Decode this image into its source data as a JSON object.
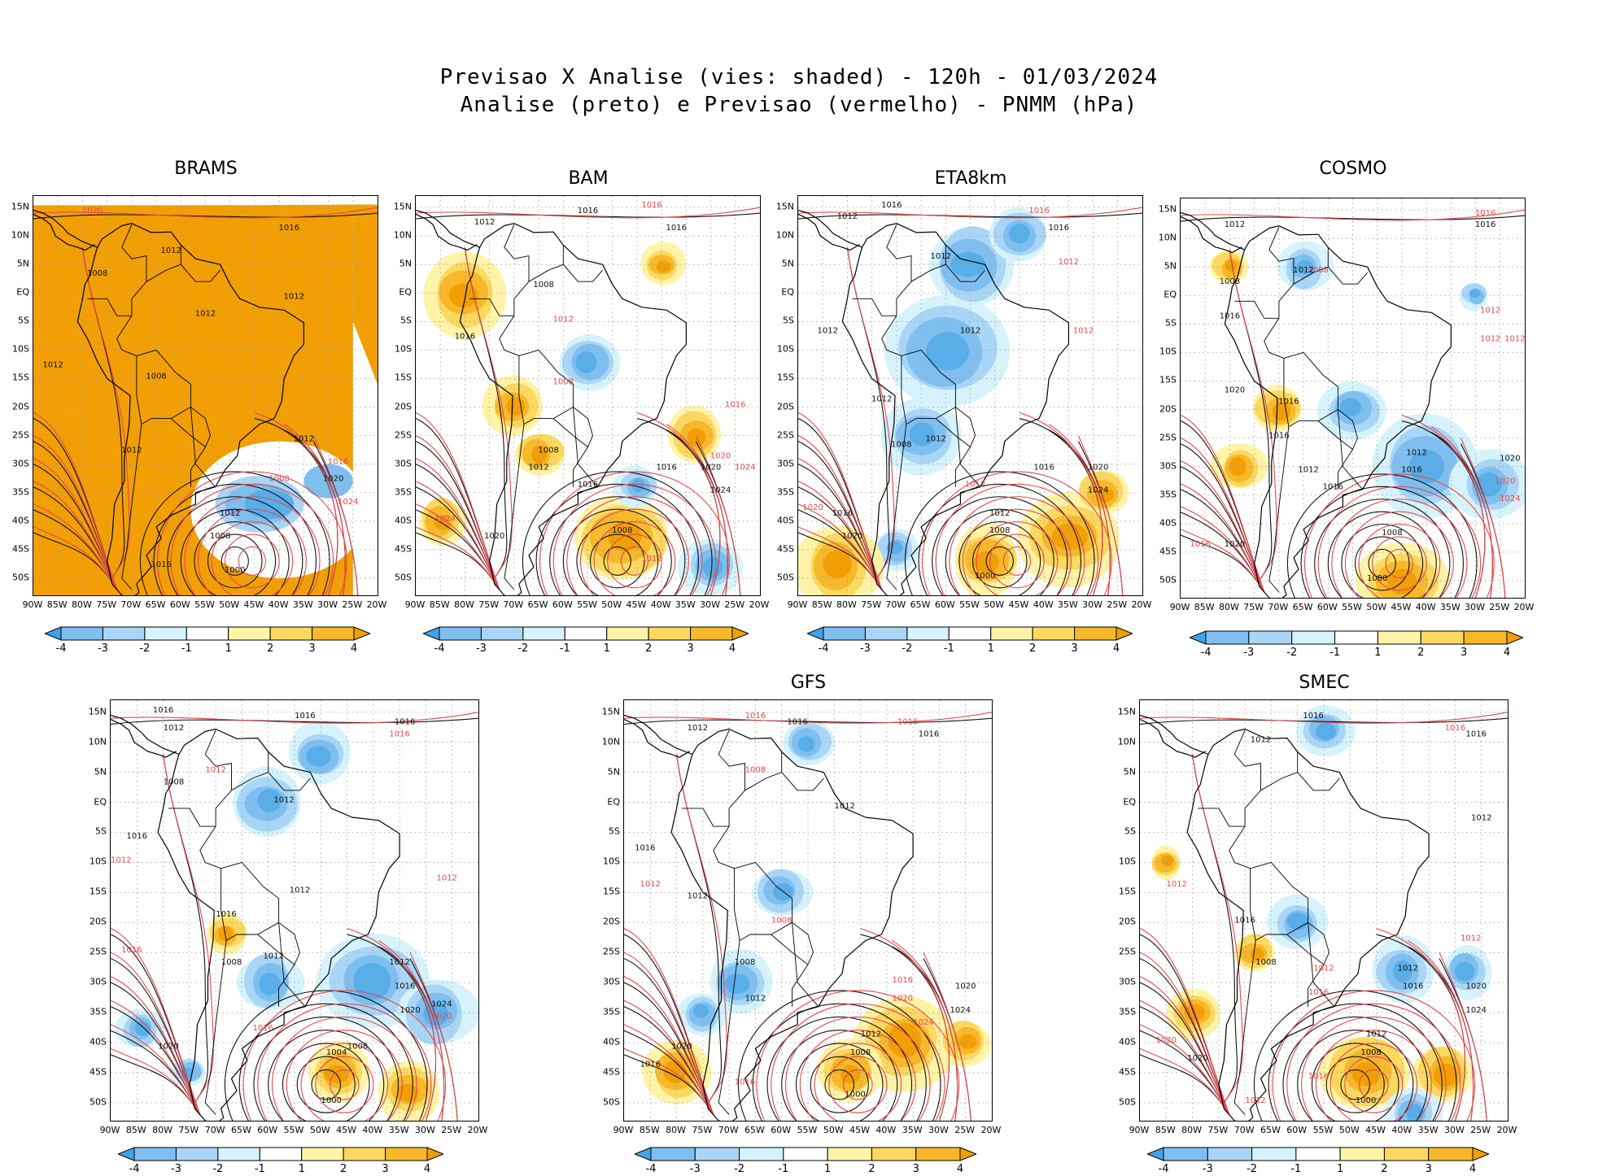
{
  "title": {
    "line1": "Previsao X Analise (vies: shaded) - 120h - 01/03/2024",
    "line2": "Analise (preto) e Previsao (vermelho) - PNMM (hPa)"
  },
  "axes": {
    "lat_labels": [
      "15N",
      "10N",
      "5N",
      "EQ",
      "5S",
      "10S",
      "15S",
      "20S",
      "25S",
      "30S",
      "35S",
      "40S",
      "45S",
      "50S"
    ],
    "lon_labels": [
      "90W",
      "85W",
      "80W",
      "75W",
      "70W",
      "65W",
      "60W",
      "55W",
      "50W",
      "45W",
      "40W",
      "35W",
      "30W",
      "25W",
      "20W"
    ]
  },
  "colorbar": {
    "labels": [
      "-4",
      "-3",
      "-2",
      "-1",
      "1",
      "2",
      "3",
      "4"
    ],
    "colors": [
      "#3fa3e8",
      "#7fbff0",
      "#a9d6f7",
      "#d6f3fb",
      "#ffffff",
      "#fff3a8",
      "#fcd860",
      "#f7b82a",
      "#f29f05"
    ]
  },
  "colors": {
    "analysis": "#111111",
    "forecast": "#e5484d",
    "warm": "#f6a21b",
    "cool": "#57aee9"
  },
  "panels": [
    {
      "name": "BRAMS",
      "labels": [
        {
          "text": "1020",
          "lon": -78,
          "lat": 14,
          "c": "r"
        },
        {
          "text": "1016",
          "lon": -38,
          "lat": 11,
          "c": "k"
        },
        {
          "text": "1012",
          "lon": -62,
          "lat": 7,
          "c": "k"
        },
        {
          "text": "1008",
          "lon": -77,
          "lat": 3,
          "c": "k"
        },
        {
          "text": "1012",
          "lon": -37,
          "lat": -1,
          "c": "k"
        },
        {
          "text": "1012",
          "lon": -55,
          "lat": -4,
          "c": "k"
        },
        {
          "text": "1012",
          "lon": -86,
          "lat": -13,
          "c": "k"
        },
        {
          "text": "1008",
          "lon": -65,
          "lat": -15,
          "c": "k"
        },
        {
          "text": "1012",
          "lon": -35,
          "lat": -26,
          "c": "k"
        },
        {
          "text": "1016",
          "lon": -28,
          "lat": -30,
          "c": "r"
        },
        {
          "text": "1008",
          "lon": -40,
          "lat": -33,
          "c": "r"
        },
        {
          "text": "1020",
          "lon": -29,
          "lat": -33,
          "c": "k"
        },
        {
          "text": "1012",
          "lon": -50,
          "lat": -39,
          "c": "k"
        },
        {
          "text": "1024",
          "lon": -26,
          "lat": -37,
          "c": "r"
        },
        {
          "text": "1008",
          "lon": -52,
          "lat": -43,
          "c": "k"
        },
        {
          "text": "1016",
          "lon": -64,
          "lat": -48,
          "c": "k"
        },
        {
          "text": "1000",
          "lon": -49,
          "lat": -49,
          "c": "k"
        },
        {
          "text": "1012",
          "lon": -70,
          "lat": -28,
          "c": "k"
        }
      ]
    },
    {
      "name": "BAM",
      "labels": [
        {
          "text": "1016",
          "lon": -42,
          "lat": 15,
          "c": "r"
        },
        {
          "text": "1016",
          "lon": -55,
          "lat": 14,
          "c": "k"
        },
        {
          "text": "1012",
          "lon": -76,
          "lat": 12,
          "c": "k"
        },
        {
          "text": "1016",
          "lon": -37,
          "lat": 11,
          "c": "k"
        },
        {
          "text": "1008",
          "lon": -64,
          "lat": 1,
          "c": "k"
        },
        {
          "text": "1012",
          "lon": -60,
          "lat": -5,
          "c": "r"
        },
        {
          "text": "1016",
          "lon": -80,
          "lat": -8,
          "c": "k"
        },
        {
          "text": "1008",
          "lon": -60,
          "lat": -16,
          "c": "r"
        },
        {
          "text": "1016",
          "lon": -25,
          "lat": -20,
          "c": "r"
        },
        {
          "text": "1008",
          "lon": -63,
          "lat": -28,
          "c": "k"
        },
        {
          "text": "1020",
          "lon": -28,
          "lat": -29,
          "c": "r"
        },
        {
          "text": "1016",
          "lon": -39,
          "lat": -31,
          "c": "k"
        },
        {
          "text": "1020",
          "lon": -30,
          "lat": -31,
          "c": "k"
        },
        {
          "text": "1024",
          "lon": -23,
          "lat": -31,
          "c": "r"
        },
        {
          "text": "1024",
          "lon": -28,
          "lat": -35,
          "c": "k"
        },
        {
          "text": "1016",
          "lon": -55,
          "lat": -34,
          "c": "k"
        },
        {
          "text": "1024",
          "lon": -84,
          "lat": -40,
          "c": "r"
        },
        {
          "text": "1008",
          "lon": -48,
          "lat": -42,
          "c": "k"
        },
        {
          "text": "1020",
          "lon": -74,
          "lat": -43,
          "c": "k"
        },
        {
          "text": "1012",
          "lon": -42,
          "lat": -47,
          "c": "r"
        },
        {
          "text": "1012",
          "lon": -65,
          "lat": -31,
          "c": "k"
        }
      ]
    },
    {
      "name": "ETA8km",
      "labels": [
        {
          "text": "1016",
          "lon": -71,
          "lat": 15,
          "c": "k"
        },
        {
          "text": "1016",
          "lon": -41,
          "lat": 14,
          "c": "r"
        },
        {
          "text": "1016",
          "lon": -37,
          "lat": 11,
          "c": "k"
        },
        {
          "text": "1012",
          "lon": -80,
          "lat": 13,
          "c": "k"
        },
        {
          "text": "1012",
          "lon": -35,
          "lat": 5,
          "c": "r"
        },
        {
          "text": "1012",
          "lon": -61,
          "lat": 6,
          "c": "k"
        },
        {
          "text": "1012",
          "lon": -84,
          "lat": -7,
          "c": "k"
        },
        {
          "text": "1012",
          "lon": -55,
          "lat": -7,
          "c": "k"
        },
        {
          "text": "1012",
          "lon": -32,
          "lat": -7,
          "c": "r"
        },
        {
          "text": "1012",
          "lon": -73,
          "lat": -19,
          "c": "k"
        },
        {
          "text": "1008",
          "lon": -69,
          "lat": -27,
          "c": "k"
        },
        {
          "text": "1012",
          "lon": -62,
          "lat": -26,
          "c": "k"
        },
        {
          "text": "1016",
          "lon": -40,
          "lat": -31,
          "c": "k"
        },
        {
          "text": "1020",
          "lon": -29,
          "lat": -31,
          "c": "k"
        },
        {
          "text": "1012",
          "lon": -54,
          "lat": -34,
          "c": "r"
        },
        {
          "text": "1024",
          "lon": -29,
          "lat": -35,
          "c": "k"
        },
        {
          "text": "1020",
          "lon": -87,
          "lat": -38,
          "c": "r"
        },
        {
          "text": "1012",
          "lon": -49,
          "lat": -39,
          "c": "k"
        },
        {
          "text": "1008",
          "lon": -49,
          "lat": -42,
          "c": "k"
        },
        {
          "text": "1020",
          "lon": -79,
          "lat": -43,
          "c": "k"
        },
        {
          "text": "1000",
          "lon": -52,
          "lat": -50,
          "c": "k"
        },
        {
          "text": "1016",
          "lon": -81,
          "lat": -39,
          "c": "k"
        }
      ]
    },
    {
      "name": "COSMO",
      "labels": [
        {
          "text": "1016",
          "lon": -28,
          "lat": 14,
          "c": "r"
        },
        {
          "text": "1016",
          "lon": -28,
          "lat": 12,
          "c": "k"
        },
        {
          "text": "1012",
          "lon": -79,
          "lat": 12,
          "c": "k"
        },
        {
          "text": "1008",
          "lon": -62,
          "lat": 4,
          "c": "r"
        },
        {
          "text": "1012",
          "lon": -65,
          "lat": 4,
          "c": "k"
        },
        {
          "text": "1008",
          "lon": -80,
          "lat": 2,
          "c": "k"
        },
        {
          "text": "1012",
          "lon": -27,
          "lat": -3,
          "c": "r"
        },
        {
          "text": "1012",
          "lon": -27,
          "lat": -8,
          "c": "r"
        },
        {
          "text": "1012",
          "lon": -22,
          "lat": -8,
          "c": "r"
        },
        {
          "text": "1016",
          "lon": -80,
          "lat": -4,
          "c": "k"
        },
        {
          "text": "1020",
          "lon": -79,
          "lat": -17,
          "c": "k"
        },
        {
          "text": "1016",
          "lon": -68,
          "lat": -19,
          "c": "k"
        },
        {
          "text": "1016",
          "lon": -70,
          "lat": -25,
          "c": "k"
        },
        {
          "text": "1012",
          "lon": -42,
          "lat": -28,
          "c": "k"
        },
        {
          "text": "1016",
          "lon": -43,
          "lat": -31,
          "c": "k"
        },
        {
          "text": "1020",
          "lon": -23,
          "lat": -29,
          "c": "k"
        },
        {
          "text": "1020",
          "lon": -24,
          "lat": -33,
          "c": "r"
        },
        {
          "text": "1024",
          "lon": -23,
          "lat": -36,
          "c": "r"
        },
        {
          "text": "1016",
          "lon": -59,
          "lat": -34,
          "c": "k"
        },
        {
          "text": "1012",
          "lon": -64,
          "lat": -31,
          "c": "k"
        },
        {
          "text": "1008",
          "lon": -47,
          "lat": -42,
          "c": "k"
        },
        {
          "text": "1000",
          "lon": -50,
          "lat": -50,
          "c": "k"
        },
        {
          "text": "1020",
          "lon": -79,
          "lat": -44,
          "c": "k"
        },
        {
          "text": "1016",
          "lon": -86,
          "lat": -44,
          "c": "r"
        }
      ]
    },
    {
      "name": "",
      "labels": [
        {
          "text": "1016",
          "lon": -80,
          "lat": 15,
          "c": "k"
        },
        {
          "text": "1016",
          "lon": -53,
          "lat": 14,
          "c": "k"
        },
        {
          "text": "1016",
          "lon": -35,
          "lat": 11,
          "c": "r"
        },
        {
          "text": "1016",
          "lon": -34,
          "lat": 13,
          "c": "k"
        },
        {
          "text": "1012",
          "lon": -78,
          "lat": 12,
          "c": "k"
        },
        {
          "text": "1012",
          "lon": -70,
          "lat": 5,
          "c": "r"
        },
        {
          "text": "1008",
          "lon": -78,
          "lat": 3,
          "c": "k"
        },
        {
          "text": "1012",
          "lon": -57,
          "lat": 0,
          "c": "k"
        },
        {
          "text": "1016",
          "lon": -85,
          "lat": -6,
          "c": "k"
        },
        {
          "text": "1012",
          "lon": -26,
          "lat": -13,
          "c": "r"
        },
        {
          "text": "1012",
          "lon": -88,
          "lat": -10,
          "c": "r"
        },
        {
          "text": "1012",
          "lon": -54,
          "lat": -15,
          "c": "k"
        },
        {
          "text": "1016",
          "lon": -68,
          "lat": -19,
          "c": "k"
        },
        {
          "text": "1008",
          "lon": -67,
          "lat": -27,
          "c": "k"
        },
        {
          "text": "1016",
          "lon": -86,
          "lat": -25,
          "c": "r"
        },
        {
          "text": "1012",
          "lon": -35,
          "lat": -27,
          "c": "k"
        },
        {
          "text": "1016",
          "lon": -34,
          "lat": -31,
          "c": "k"
        },
        {
          "text": "1020",
          "lon": -33,
          "lat": -35,
          "c": "k"
        },
        {
          "text": "1024",
          "lon": -27,
          "lat": -34,
          "c": "k"
        },
        {
          "text": "1020",
          "lon": -27,
          "lat": -36,
          "c": "r"
        },
        {
          "text": "1004",
          "lon": -47,
          "lat": -42,
          "c": "k"
        },
        {
          "text": "1008",
          "lon": -43,
          "lat": -41,
          "c": "k"
        },
        {
          "text": "1016",
          "lon": -61,
          "lat": -38,
          "c": "r"
        },
        {
          "text": "1020",
          "lon": -79,
          "lat": -41,
          "c": "k"
        },
        {
          "text": "1000",
          "lon": -48,
          "lat": -50,
          "c": "k"
        },
        {
          "text": "1012",
          "lon": -59,
          "lat": -26,
          "c": "k"
        }
      ]
    },
    {
      "name": "GFS",
      "labels": [
        {
          "text": "1016",
          "lon": -65,
          "lat": 14,
          "c": "r"
        },
        {
          "text": "1016",
          "lon": -57,
          "lat": 13,
          "c": "k"
        },
        {
          "text": "1016",
          "lon": -36,
          "lat": 13,
          "c": "r"
        },
        {
          "text": "1016",
          "lon": -32,
          "lat": 11,
          "c": "k"
        },
        {
          "text": "1012",
          "lon": -76,
          "lat": 12,
          "c": "k"
        },
        {
          "text": "1008",
          "lon": -65,
          "lat": 5,
          "c": "r"
        },
        {
          "text": "1012",
          "lon": -48,
          "lat": -1,
          "c": "k"
        },
        {
          "text": "1016",
          "lon": -86,
          "lat": -8,
          "c": "k"
        },
        {
          "text": "1012",
          "lon": -85,
          "lat": -14,
          "c": "r"
        },
        {
          "text": "1012",
          "lon": -76,
          "lat": -16,
          "c": "k"
        },
        {
          "text": "1008",
          "lon": -60,
          "lat": -20,
          "c": "r"
        },
        {
          "text": "1008",
          "lon": -67,
          "lat": -27,
          "c": "k"
        },
        {
          "text": "1012",
          "lon": -65,
          "lat": -33,
          "c": "k"
        },
        {
          "text": "1016",
          "lon": -37,
          "lat": -30,
          "c": "r"
        },
        {
          "text": "1020",
          "lon": -37,
          "lat": -33,
          "c": "r"
        },
        {
          "text": "1020",
          "lon": -25,
          "lat": -31,
          "c": "k"
        },
        {
          "text": "1024",
          "lon": -26,
          "lat": -35,
          "c": "k"
        },
        {
          "text": "1024",
          "lon": -33,
          "lat": -37,
          "c": "r"
        },
        {
          "text": "1012",
          "lon": -43,
          "lat": -39,
          "c": "k"
        },
        {
          "text": "1008",
          "lon": -45,
          "lat": -42,
          "c": "k"
        },
        {
          "text": "1016",
          "lon": -67,
          "lat": -47,
          "c": "r"
        },
        {
          "text": "1000",
          "lon": -46,
          "lat": -49,
          "c": "k"
        },
        {
          "text": "1020",
          "lon": -79,
          "lat": -41,
          "c": "k"
        },
        {
          "text": "1016",
          "lon": -85,
          "lat": -44,
          "c": "k"
        }
      ]
    },
    {
      "name": "SMEC",
      "labels": [
        {
          "text": "1016",
          "lon": -57,
          "lat": 14,
          "c": "k"
        },
        {
          "text": "1016",
          "lon": -30,
          "lat": 12,
          "c": "r"
        },
        {
          "text": "1016",
          "lon": -26,
          "lat": 11,
          "c": "k"
        },
        {
          "text": "1012",
          "lon": -67,
          "lat": 10,
          "c": "k"
        },
        {
          "text": "1012",
          "lon": -25,
          "lat": -3,
          "c": "k"
        },
        {
          "text": "1012",
          "lon": -83,
          "lat": -14,
          "c": "r"
        },
        {
          "text": "1016",
          "lon": -70,
          "lat": -20,
          "c": "k"
        },
        {
          "text": "1008",
          "lon": -66,
          "lat": -27,
          "c": "k"
        },
        {
          "text": "1012",
          "lon": -55,
          "lat": -28,
          "c": "r"
        },
        {
          "text": "1016",
          "lon": -56,
          "lat": -32,
          "c": "r"
        },
        {
          "text": "1012",
          "lon": -39,
          "lat": -28,
          "c": "k"
        },
        {
          "text": "1016",
          "lon": -38,
          "lat": -31,
          "c": "k"
        },
        {
          "text": "1020",
          "lon": -26,
          "lat": -31,
          "c": "k"
        },
        {
          "text": "1024",
          "lon": -26,
          "lat": -35,
          "c": "k"
        },
        {
          "text": "1012",
          "lon": -27,
          "lat": -23,
          "c": "r"
        },
        {
          "text": "1012",
          "lon": -45,
          "lat": -39,
          "c": "k"
        },
        {
          "text": "1008",
          "lon": -46,
          "lat": -42,
          "c": "k"
        },
        {
          "text": "1016",
          "lon": -56,
          "lat": -46,
          "c": "r"
        },
        {
          "text": "1000",
          "lon": -47,
          "lat": -50,
          "c": "k"
        },
        {
          "text": "1020",
          "lon": -85,
          "lat": -40,
          "c": "r"
        },
        {
          "text": "1012",
          "lon": -68,
          "lat": -50,
          "c": "r"
        },
        {
          "text": "1020",
          "lon": -79,
          "lat": -43,
          "c": "k"
        }
      ]
    }
  ]
}
